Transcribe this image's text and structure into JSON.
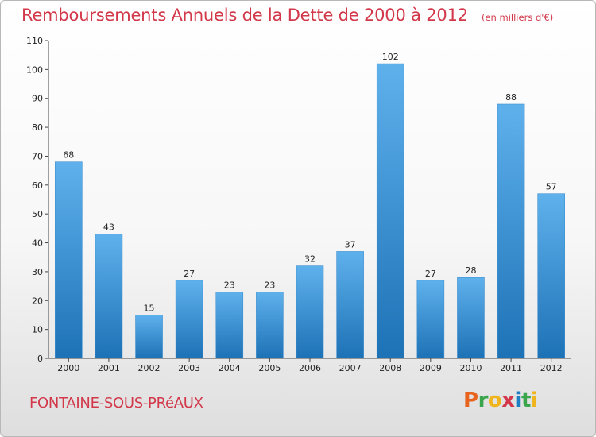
{
  "header": {
    "title": "Remboursements Annuels de la Dette de 2000 à 2012",
    "unit": "(en milliers d'€)"
  },
  "footer": {
    "commune": "FONTAINE-SOUS-PRéAUX",
    "brand_letters": [
      "P",
      "r",
      "o",
      "x",
      "i",
      "t",
      "i"
    ],
    "brand_colors": [
      "#e8641e",
      "#3aa54b",
      "#f0b51c",
      "#d2384a",
      "#1e7fc4",
      "#3aa54b",
      "#f0b51c"
    ]
  },
  "colors": {
    "accent_text": "#d2384a",
    "bar_top": "#5fb1ec",
    "bar_bottom": "#1d72b6"
  },
  "chart_data": {
    "type": "bar",
    "categories": [
      "2000",
      "2001",
      "2002",
      "2003",
      "2004",
      "2005",
      "2006",
      "2007",
      "2008",
      "2009",
      "2010",
      "2011",
      "2012"
    ],
    "values": [
      68,
      43,
      15,
      27,
      23,
      23,
      32,
      37,
      102,
      27,
      28,
      88,
      57
    ],
    "title": "Remboursements Annuels de la Dette de 2000 à 2012",
    "ylim": [
      0,
      110
    ],
    "yticks": [
      0,
      10,
      20,
      30,
      40,
      50,
      60,
      70,
      80,
      90,
      100,
      110
    ],
    "grid": false,
    "legend": "none"
  }
}
